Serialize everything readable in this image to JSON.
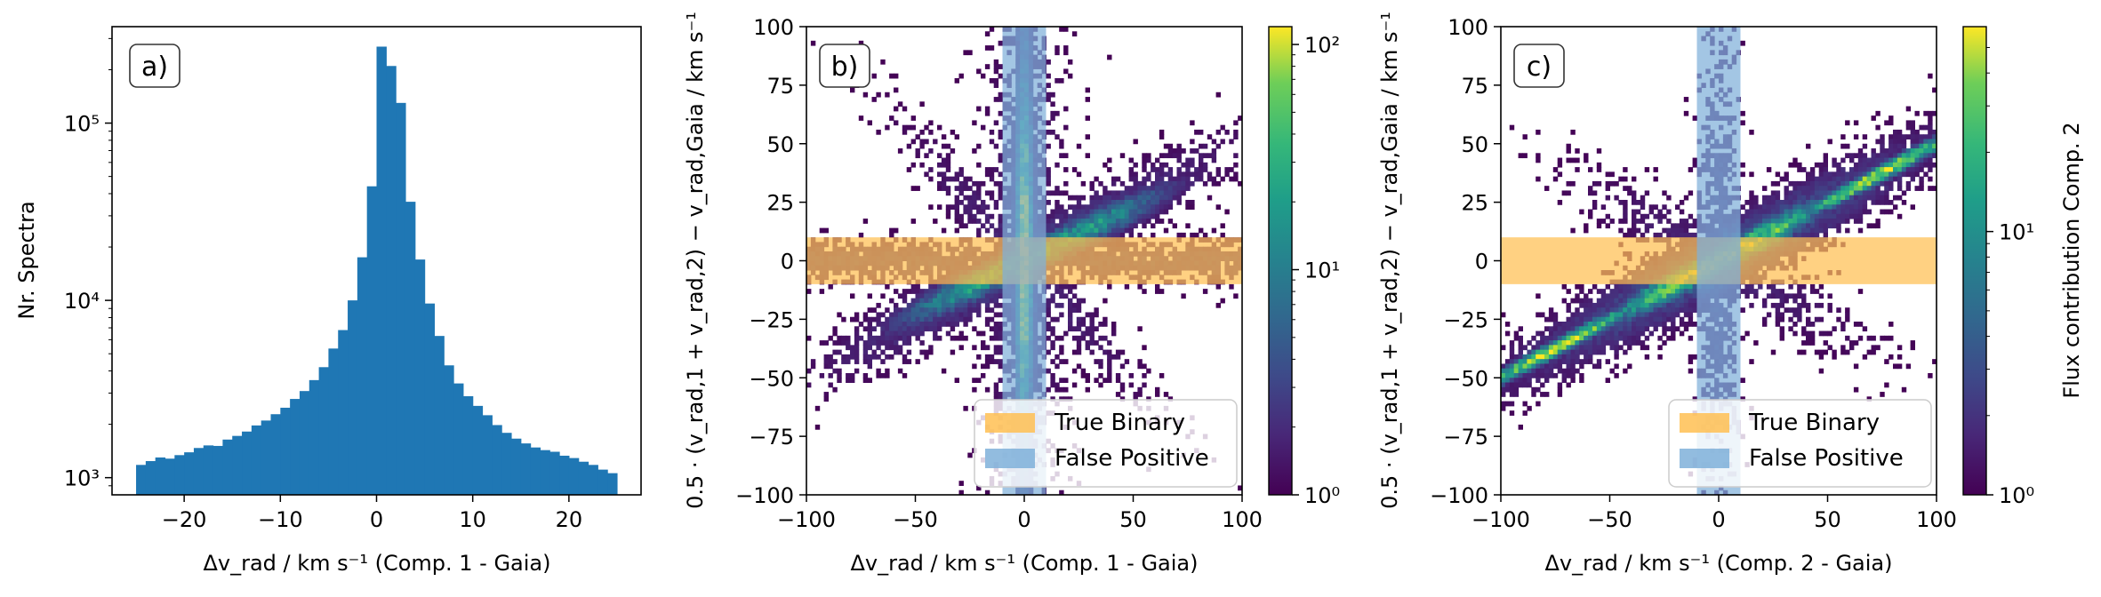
{
  "chart_data": [
    {
      "type": "bar",
      "panel_label": "a)",
      "xlabel": "Δv_rad / km s⁻¹ (Comp. 1 - Gaia)",
      "ylabel": "Nr. Spectra",
      "yscale": "log",
      "xlim": [
        -27.5,
        27.5
      ],
      "ylim": [
        800,
        350000
      ],
      "xticks": [
        -20,
        -10,
        0,
        10,
        20
      ],
      "xtick_labels": [
        "−20",
        "−10",
        "0",
        "10",
        "20"
      ],
      "yticks": [
        1000,
        10000,
        100000
      ],
      "ytick_labels": [
        "10³",
        "10⁴",
        "10⁵"
      ],
      "bin_edges": [
        -25,
        -24,
        -23,
        -22,
        -21,
        -20,
        -19,
        -18,
        -17,
        -16,
        -15,
        -14,
        -13,
        -12,
        -11,
        -10,
        -9,
        -8,
        -7,
        -6,
        -5,
        -4,
        -3,
        -2,
        -1,
        0,
        1,
        2,
        3,
        4,
        5,
        6,
        7,
        8,
        9,
        10,
        11,
        12,
        13,
        14,
        15,
        16,
        17,
        18,
        19,
        20,
        21,
        22,
        23,
        24,
        25
      ],
      "values": [
        1180,
        1240,
        1300,
        1280,
        1340,
        1390,
        1470,
        1520,
        1510,
        1640,
        1720,
        1820,
        1970,
        2100,
        2280,
        2480,
        2780,
        3080,
        3550,
        4200,
        5350,
        6800,
        10000,
        17500,
        44000,
        270000,
        210000,
        130000,
        36000,
        17000,
        9600,
        6300,
        4300,
        3400,
        2880,
        2540,
        2250,
        1980,
        1790,
        1660,
        1560,
        1480,
        1430,
        1400,
        1330,
        1290,
        1230,
        1180,
        1110,
        1060
      ],
      "color": "#1f77b4"
    },
    {
      "type": "heatmap",
      "panel_label": "b)",
      "xlabel": "Δv_rad / km s⁻¹ (Comp. 1 - Gaia)",
      "ylabel": "0.5 · (v_rad,1 + v_rad,2) − v_rad,Gaia / km s⁻¹",
      "xlim": [
        -100,
        100
      ],
      "ylim": [
        -100,
        100
      ],
      "xticks": [
        -100,
        -50,
        0,
        50,
        100
      ],
      "yticks": [
        -100,
        -75,
        -50,
        -25,
        0,
        25,
        50,
        75,
        100
      ],
      "colorbar": {
        "scale": "log",
        "range": [
          1,
          120
        ],
        "ticks": [
          1,
          10,
          100
        ],
        "tick_labels": [
          "10⁰",
          "10¹",
          "10²"
        ],
        "colormap": "viridis"
      },
      "bands": [
        {
          "name": "True Binary",
          "orientation": "horizontal",
          "range": [
            -10,
            10
          ],
          "color": "#ffbf52"
        },
        {
          "name": "False Positive",
          "orientation": "vertical",
          "range": [
            -10,
            10
          ],
          "color": "#7fb0d9"
        }
      ],
      "legend_position": "lower right"
    },
    {
      "type": "heatmap",
      "panel_label": "c)",
      "xlabel": "Δv_rad / km s⁻¹ (Comp. 2 - Gaia)",
      "ylabel": "0.5 · (v_rad,1 + v_rad,2) − v_rad,Gaia / km s⁻¹",
      "xlim": [
        -100,
        100
      ],
      "ylim": [
        -100,
        100
      ],
      "xticks": [
        -100,
        -50,
        0,
        50,
        100
      ],
      "yticks": [
        -100,
        -75,
        -50,
        -25,
        0,
        25,
        50,
        75,
        100
      ],
      "colorbar": {
        "label": "Flux contribution Comp. 2",
        "scale": "log",
        "range": [
          1,
          60
        ],
        "ticks": [
          1,
          10
        ],
        "tick_labels": [
          "10⁰",
          "10¹"
        ],
        "colormap": "viridis"
      },
      "bands": [
        {
          "name": "True Binary",
          "orientation": "horizontal",
          "range": [
            -10,
            10
          ],
          "color": "#ffbf52"
        },
        {
          "name": "False Positive",
          "orientation": "vertical",
          "range": [
            -10,
            10
          ],
          "color": "#7fb0d9"
        }
      ],
      "legend_position": "lower right"
    }
  ]
}
